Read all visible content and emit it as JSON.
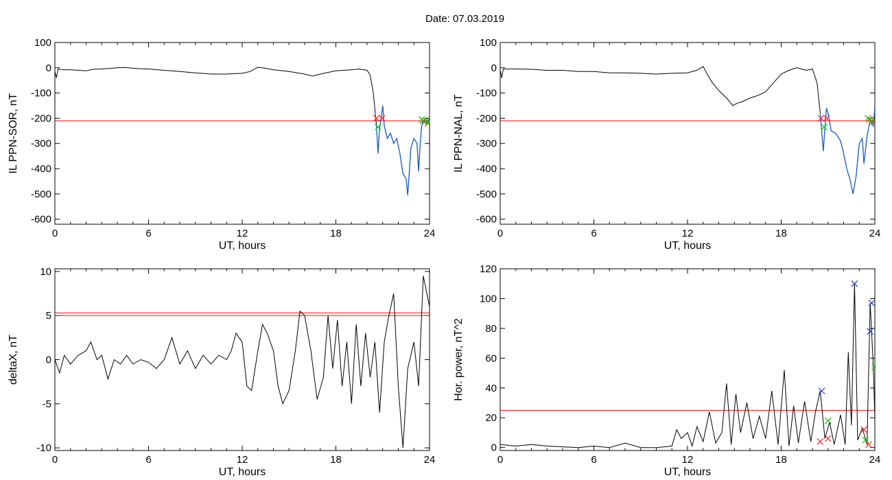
{
  "page": {
    "title": "Date:  07.03.2019"
  },
  "chart_data": [
    {
      "id": "p1",
      "type": "line",
      "xlabel": "UT, hours",
      "ylabel": "IL PPN-SOR, nT",
      "xlim": [
        0,
        24
      ],
      "ylim": [
        -620,
        100
      ],
      "xticks": [
        0,
        6,
        12,
        18,
        24
      ],
      "yticks": [
        100,
        0,
        -100,
        -200,
        -300,
        -400,
        -500,
        -600
      ],
      "threshold": -210,
      "colors": {
        "series": "#000000",
        "highlight": "#1f5fcf",
        "threshold": "#ff0000",
        "red_mark": "#ff2020",
        "green_mark": "#00cc00"
      },
      "series": [
        {
          "points": [
            [
              0,
              -15
            ],
            [
              0.1,
              -40
            ],
            [
              0.2,
              -5
            ],
            [
              0.5,
              -8
            ],
            [
              1,
              -8
            ],
            [
              1.5,
              -10
            ],
            [
              2,
              -12
            ],
            [
              2.5,
              -6
            ],
            [
              3,
              -5
            ],
            [
              3.5,
              -3
            ],
            [
              4,
              0
            ],
            [
              4.5,
              1
            ],
            [
              5,
              -2
            ],
            [
              5.5,
              -4
            ],
            [
              6,
              -5
            ],
            [
              7,
              -10
            ],
            [
              8,
              -15
            ],
            [
              9,
              -20
            ],
            [
              10,
              -25
            ],
            [
              11,
              -25
            ],
            [
              12,
              -22
            ],
            [
              12.5,
              -15
            ],
            [
              12.8,
              -5
            ],
            [
              13,
              2
            ],
            [
              13.5,
              -2
            ],
            [
              14,
              -8
            ],
            [
              15,
              -15
            ],
            [
              16,
              -25
            ],
            [
              16.5,
              -33
            ],
            [
              17,
              -25
            ],
            [
              18,
              -12
            ],
            [
              19,
              -8
            ],
            [
              19.5,
              -5
            ],
            [
              20,
              -10
            ],
            [
              20.2,
              -30
            ],
            [
              20.4,
              -100
            ],
            [
              20.6,
              -230
            ],
            [
              20.7,
              -340
            ],
            [
              20.8,
              -240
            ],
            [
              20.9,
              -200
            ],
            [
              21,
              -150
            ],
            [
              21.1,
              -230
            ],
            [
              21.3,
              -280
            ],
            [
              21.5,
              -260
            ],
            [
              21.7,
              -300
            ],
            [
              21.9,
              -280
            ],
            [
              22.1,
              -340
            ],
            [
              22.3,
              -420
            ],
            [
              22.5,
              -440
            ],
            [
              22.6,
              -505
            ],
            [
              22.7,
              -420
            ],
            [
              22.8,
              -320
            ],
            [
              23,
              -280
            ],
            [
              23.2,
              -300
            ],
            [
              23.3,
              -410
            ],
            [
              23.4,
              -300
            ],
            [
              23.5,
              -230
            ],
            [
              23.6,
              -210
            ],
            [
              23.8,
              -220
            ],
            [
              24,
              -200
            ]
          ]
        }
      ],
      "highlight_range": [
        20.5,
        24
      ],
      "markers_red": [
        [
          20.6,
          -200
        ],
        [
          20.95,
          -200
        ],
        [
          23.6,
          -210
        ],
        [
          23.9,
          -220
        ]
      ],
      "markers_green": [
        [
          20.7,
          -235
        ],
        [
          23.5,
          -205
        ],
        [
          23.75,
          -210
        ],
        [
          23.95,
          -215
        ]
      ]
    },
    {
      "id": "p2",
      "type": "line",
      "xlabel": "UT, hours",
      "ylabel": "IL PPN-NAL, nT",
      "xlim": [
        0,
        24
      ],
      "ylim": [
        -620,
        100
      ],
      "xticks": [
        0,
        6,
        12,
        18,
        24
      ],
      "yticks": [
        100,
        0,
        -100,
        -200,
        -300,
        -400,
        -500,
        -600
      ],
      "threshold": -210,
      "colors": {
        "series": "#000000",
        "highlight": "#1f5fcf",
        "threshold": "#ff0000",
        "red_mark": "#ff2020",
        "green_mark": "#00cc00"
      },
      "series": [
        {
          "points": [
            [
              0,
              -10
            ],
            [
              0.1,
              -40
            ],
            [
              0.2,
              -5
            ],
            [
              1,
              -5
            ],
            [
              2,
              -6
            ],
            [
              3,
              -10
            ],
            [
              4,
              -10
            ],
            [
              5,
              -15
            ],
            [
              6,
              -15
            ],
            [
              7,
              -20
            ],
            [
              8,
              -20
            ],
            [
              9,
              -22
            ],
            [
              10,
              -25
            ],
            [
              11,
              -22
            ],
            [
              12,
              -20
            ],
            [
              12.6,
              -10
            ],
            [
              13,
              5
            ],
            [
              13.3,
              -30
            ],
            [
              13.6,
              -60
            ],
            [
              14,
              -90
            ],
            [
              14.5,
              -120
            ],
            [
              14.9,
              -150
            ],
            [
              15.2,
              -140
            ],
            [
              15.5,
              -135
            ],
            [
              16,
              -120
            ],
            [
              16.5,
              -110
            ],
            [
              17,
              -95
            ],
            [
              17.5,
              -60
            ],
            [
              18,
              -25
            ],
            [
              18.5,
              -10
            ],
            [
              19,
              0
            ],
            [
              19.3,
              -5
            ],
            [
              19.6,
              -10
            ],
            [
              20,
              -5
            ],
            [
              20.3,
              -60
            ],
            [
              20.5,
              -180
            ],
            [
              20.7,
              -330
            ],
            [
              20.8,
              -240
            ],
            [
              20.9,
              -160
            ],
            [
              21,
              -180
            ],
            [
              21.2,
              -250
            ],
            [
              21.5,
              -260
            ],
            [
              21.8,
              -290
            ],
            [
              22,
              -340
            ],
            [
              22.2,
              -400
            ],
            [
              22.4,
              -440
            ],
            [
              22.6,
              -500
            ],
            [
              22.8,
              -430
            ],
            [
              23,
              -300
            ],
            [
              23.2,
              -280
            ],
            [
              23.3,
              -380
            ],
            [
              23.5,
              -270
            ],
            [
              23.7,
              -210
            ],
            [
              23.9,
              -230
            ],
            [
              24,
              -160
            ]
          ]
        }
      ],
      "highlight_range": [
        20.5,
        24
      ],
      "markers_red": [
        [
          20.55,
          -200
        ],
        [
          20.9,
          -200
        ],
        [
          23.65,
          -205
        ],
        [
          23.9,
          -215
        ]
      ],
      "markers_green": [
        [
          20.75,
          -235
        ],
        [
          23.55,
          -200
        ],
        [
          23.8,
          -210
        ]
      ]
    },
    {
      "id": "p3",
      "type": "line",
      "xlabel": "UT, hours",
      "ylabel": "deltaX, nT",
      "xlim": [
        0,
        24
      ],
      "ylim": [
        -10.3,
        10.3
      ],
      "xticks": [
        0,
        6,
        12,
        18,
        24
      ],
      "yticks": [
        10,
        5,
        0,
        -5,
        -10
      ],
      "threshold_lines": [
        5.0,
        5.3
      ],
      "colors": {
        "series": "#000000",
        "threshold": "#ff0000"
      },
      "series": [
        {
          "points": [
            [
              0,
              0
            ],
            [
              0.3,
              -1.5
            ],
            [
              0.6,
              0.5
            ],
            [
              1,
              -0.5
            ],
            [
              1.5,
              0.5
            ],
            [
              2,
              1
            ],
            [
              2.3,
              2
            ],
            [
              2.7,
              0
            ],
            [
              3,
              0.5
            ],
            [
              3.4,
              -2.2
            ],
            [
              3.8,
              0
            ],
            [
              4.2,
              -0.5
            ],
            [
              4.6,
              0.5
            ],
            [
              5,
              -0.5
            ],
            [
              5.5,
              0
            ],
            [
              6,
              -0.3
            ],
            [
              6.5,
              -1
            ],
            [
              7,
              0
            ],
            [
              7.5,
              2.5
            ],
            [
              8,
              -0.5
            ],
            [
              8.5,
              1
            ],
            [
              9,
              -1
            ],
            [
              9.5,
              0.5
            ],
            [
              10,
              -0.5
            ],
            [
              10.5,
              0.5
            ],
            [
              11,
              0
            ],
            [
              11.3,
              1
            ],
            [
              11.6,
              3
            ],
            [
              12,
              2
            ],
            [
              12.3,
              -3
            ],
            [
              12.6,
              -3.5
            ],
            [
              13,
              1
            ],
            [
              13.3,
              4
            ],
            [
              13.6,
              3
            ],
            [
              14,
              1
            ],
            [
              14.3,
              -3
            ],
            [
              14.6,
              -5
            ],
            [
              15,
              -3.5
            ],
            [
              15.4,
              1
            ],
            [
              15.7,
              5.5
            ],
            [
              16,
              5
            ],
            [
              16.4,
              1
            ],
            [
              16.8,
              -4.5
            ],
            [
              17.2,
              -2
            ],
            [
              17.5,
              5
            ],
            [
              17.8,
              -1
            ],
            [
              18.1,
              4.5
            ],
            [
              18.4,
              -3
            ],
            [
              18.7,
              2
            ],
            [
              19,
              -5
            ],
            [
              19.3,
              4
            ],
            [
              19.6,
              -3
            ],
            [
              19.9,
              3
            ],
            [
              20.2,
              -2
            ],
            [
              20.5,
              2
            ],
            [
              20.8,
              -6
            ],
            [
              21.1,
              2
            ],
            [
              21.4,
              5
            ],
            [
              21.7,
              7.5
            ],
            [
              22,
              -3
            ],
            [
              22.3,
              -10
            ],
            [
              22.6,
              -1
            ],
            [
              23,
              2
            ],
            [
              23.3,
              -3
            ],
            [
              23.6,
              9.5
            ],
            [
              24,
              6
            ]
          ]
        }
      ]
    },
    {
      "id": "p4",
      "type": "line",
      "xlabel": "UT, hours",
      "ylabel": "Hor. power, nT^2",
      "xlim": [
        0,
        24
      ],
      "ylim": [
        -2,
        120
      ],
      "xticks": [
        0,
        6,
        12,
        18,
        24
      ],
      "yticks": [
        120,
        100,
        80,
        60,
        40,
        20,
        0
      ],
      "threshold": 25,
      "colors": {
        "series": "#000000",
        "threshold": "#ff0000",
        "blue_mark": "#2040d0",
        "red_mark": "#ff2020",
        "green_mark": "#00cc00"
      },
      "series": [
        {
          "points": [
            [
              0,
              2
            ],
            [
              1,
              1
            ],
            [
              2,
              2
            ],
            [
              3,
              1
            ],
            [
              4,
              0.5
            ],
            [
              5,
              0
            ],
            [
              6,
              1
            ],
            [
              7,
              0
            ],
            [
              8,
              3
            ],
            [
              9,
              0
            ],
            [
              10,
              0
            ],
            [
              11,
              1
            ],
            [
              11.3,
              12
            ],
            [
              11.6,
              6
            ],
            [
              12,
              10
            ],
            [
              12.3,
              1
            ],
            [
              12.6,
              14
            ],
            [
              13,
              4
            ],
            [
              13.4,
              24
            ],
            [
              13.8,
              3
            ],
            [
              14.2,
              10
            ],
            [
              14.5,
              43
            ],
            [
              14.8,
              2
            ],
            [
              15.1,
              36
            ],
            [
              15.4,
              10
            ],
            [
              15.8,
              30
            ],
            [
              16.2,
              6
            ],
            [
              16.6,
              21
            ],
            [
              17,
              6
            ],
            [
              17.4,
              38
            ],
            [
              17.8,
              2
            ],
            [
              18.2,
              52
            ],
            [
              18.5,
              1
            ],
            [
              18.8,
              28
            ],
            [
              19.1,
              3
            ],
            [
              19.5,
              31
            ],
            [
              19.9,
              4
            ],
            [
              20.2,
              24
            ],
            [
              20.5,
              38
            ],
            [
              20.8,
              6
            ],
            [
              21.1,
              17
            ],
            [
              21.4,
              2
            ],
            [
              21.8,
              22
            ],
            [
              22.1,
              2
            ],
            [
              22.3,
              64
            ],
            [
              22.5,
              15
            ],
            [
              22.7,
              110
            ],
            [
              22.9,
              5
            ],
            [
              23.2,
              13
            ],
            [
              23.5,
              2
            ],
            [
              23.7,
              97
            ],
            [
              23.9,
              55
            ],
            [
              24,
              20
            ]
          ]
        }
      ],
      "markers_blue": [
        [
          20.6,
          38
        ],
        [
          22.7,
          110
        ],
        [
          23.8,
          97
        ],
        [
          23.7,
          78
        ]
      ],
      "markers_red": [
        [
          20.5,
          4
        ],
        [
          21,
          6
        ],
        [
          23.3,
          12
        ],
        [
          23.6,
          2
        ]
      ],
      "markers_green": [
        [
          21,
          18
        ],
        [
          23.4,
          5
        ],
        [
          24,
          54
        ]
      ]
    }
  ]
}
